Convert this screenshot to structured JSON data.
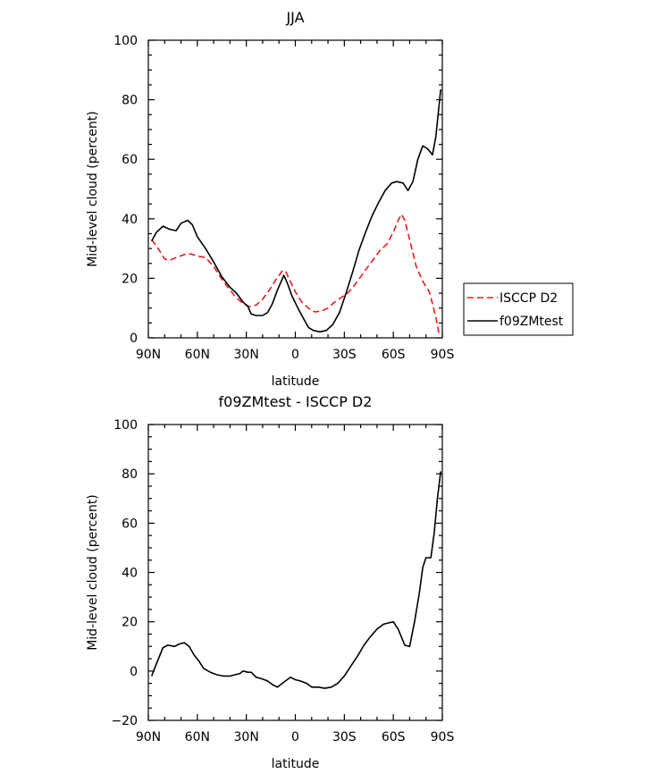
{
  "chart_data": [
    {
      "type": "line",
      "title": "JJA",
      "xlabel": "latitude",
      "ylabel": "Mid-level cloud (percent)",
      "xlim": [
        90,
        -90
      ],
      "ylim": [
        0,
        100
      ],
      "xticks": [
        90,
        60,
        30,
        0,
        -30,
        -60,
        -90
      ],
      "xtick_labels": [
        "90N",
        "60N",
        "30N",
        "0",
        "30S",
        "60S",
        "90S"
      ],
      "yticks": [
        0,
        20,
        40,
        60,
        80,
        100
      ],
      "legend": "outside-right",
      "series": [
        {
          "name": "ISCCP D2",
          "color": "#e8191c",
          "dash": "dashed",
          "points": [
            [
              88,
              33
            ],
            [
              84,
              30
            ],
            [
              80,
              26.5
            ],
            [
              77,
              26
            ],
            [
              73,
              27
            ],
            [
              68,
              28
            ],
            [
              64,
              28.2
            ],
            [
              60,
              27.5
            ],
            [
              55,
              27
            ],
            [
              50,
              24
            ],
            [
              46,
              20.5
            ],
            [
              42,
              17.5
            ],
            [
              37,
              14
            ],
            [
              32,
              11.5
            ],
            [
              28,
              10.5
            ],
            [
              24,
              11
            ],
            [
              20,
              13
            ],
            [
              16,
              16
            ],
            [
              12,
              19.5
            ],
            [
              8,
              22.5
            ],
            [
              6,
              22.5
            ],
            [
              4,
              20
            ],
            [
              0,
              15.5
            ],
            [
              -4,
              12
            ],
            [
              -8,
              10
            ],
            [
              -12,
              8.7
            ],
            [
              -16,
              9
            ],
            [
              -20,
              10
            ],
            [
              -24,
              12
            ],
            [
              -28,
              13.5
            ],
            [
              -32,
              15
            ],
            [
              -36,
              17.5
            ],
            [
              -40,
              20.5
            ],
            [
              -44,
              23.5
            ],
            [
              -48,
              26.5
            ],
            [
              -52,
              29.5
            ],
            [
              -56,
              31.5
            ],
            [
              -60,
              35.5
            ],
            [
              -63,
              39.5
            ],
            [
              -65,
              41.5
            ],
            [
              -67,
              39.5
            ],
            [
              -70,
              33
            ],
            [
              -74,
              24
            ],
            [
              -78,
              19
            ],
            [
              -82,
              15.5
            ],
            [
              -84,
              11.5
            ],
            [
              -86,
              7
            ],
            [
              -88,
              1.5
            ]
          ]
        },
        {
          "name": "f09ZMtest",
          "color": "#000000",
          "dash": "solid",
          "points": [
            [
              88,
              32.5
            ],
            [
              85,
              35.5
            ],
            [
              81,
              37.5
            ],
            [
              77,
              36.5
            ],
            [
              73,
              36
            ],
            [
              70,
              38.5
            ],
            [
              66,
              39.5
            ],
            [
              63,
              38
            ],
            [
              60,
              34
            ],
            [
              55,
              30
            ],
            [
              50,
              25.5
            ],
            [
              45,
              20.5
            ],
            [
              40,
              17
            ],
            [
              36,
              15
            ],
            [
              32,
              12
            ],
            [
              29,
              10.5
            ],
            [
              27,
              8
            ],
            [
              24,
              7.5
            ],
            [
              20,
              7.5
            ],
            [
              17,
              8.5
            ],
            [
              14,
              11.5
            ],
            [
              11,
              16
            ],
            [
              7,
              21
            ],
            [
              5,
              18.5
            ],
            [
              2,
              14
            ],
            [
              -2,
              9.5
            ],
            [
              -6,
              5.5
            ],
            [
              -8,
              3.5
            ],
            [
              -11,
              2.5
            ],
            [
              -15,
              2
            ],
            [
              -19,
              2.5
            ],
            [
              -23,
              4.5
            ],
            [
              -27,
              8.5
            ],
            [
              -31,
              15
            ],
            [
              -35,
              22
            ],
            [
              -39,
              29.5
            ],
            [
              -43,
              35.5
            ],
            [
              -47,
              41
            ],
            [
              -51,
              45.5
            ],
            [
              -55,
              49.5
            ],
            [
              -59,
              52
            ],
            [
              -62,
              52.5
            ],
            [
              -66,
              52
            ],
            [
              -69,
              49.5
            ],
            [
              -72,
              52.5
            ],
            [
              -75,
              60
            ],
            [
              -78,
              64.5
            ],
            [
              -81,
              63.5
            ],
            [
              -84,
              61.5
            ],
            [
              -86,
              67.5
            ],
            [
              -88,
              78
            ],
            [
              -89,
              83.5
            ]
          ]
        }
      ]
    },
    {
      "type": "line",
      "title": "f09ZMtest - ISCCP D2",
      "xlabel": "latitude",
      "ylabel": "Mid-level cloud (percent)",
      "xlim": [
        90,
        -90
      ],
      "ylim": [
        -20,
        100
      ],
      "xticks": [
        90,
        60,
        30,
        0,
        -30,
        -60,
        -90
      ],
      "xtick_labels": [
        "90N",
        "60N",
        "30N",
        "0",
        "30S",
        "60S",
        "90S"
      ],
      "yticks": [
        -20,
        0,
        20,
        40,
        60,
        80,
        100
      ],
      "series": [
        {
          "color": "#000000",
          "dash": "solid",
          "points": [
            [
              88,
              -2
            ],
            [
              85,
              3
            ],
            [
              81,
              9.5
            ],
            [
              78,
              10.5
            ],
            [
              74,
              10
            ],
            [
              71,
              11
            ],
            [
              68,
              11.5
            ],
            [
              65,
              10
            ],
            [
              62,
              6.5
            ],
            [
              59,
              4
            ],
            [
              56,
              1
            ],
            [
              52,
              -0.5
            ],
            [
              48,
              -1.5
            ],
            [
              44,
              -2
            ],
            [
              40,
              -2
            ],
            [
              37,
              -1.5
            ],
            [
              34,
              -1
            ],
            [
              32,
              0
            ],
            [
              29,
              -0.5
            ],
            [
              27,
              -0.5
            ],
            [
              24,
              -2.5
            ],
            [
              21,
              -3
            ],
            [
              17,
              -4
            ],
            [
              14,
              -5.5
            ],
            [
              11,
              -6.5
            ],
            [
              9,
              -5.5
            ],
            [
              6,
              -4
            ],
            [
              3,
              -2.5
            ],
            [
              0,
              -3.5
            ],
            [
              -3,
              -4
            ],
            [
              -7,
              -5
            ],
            [
              -10,
              -6.5
            ],
            [
              -14,
              -6.5
            ],
            [
              -18,
              -7
            ],
            [
              -22,
              -6.5
            ],
            [
              -26,
              -5
            ],
            [
              -30,
              -2
            ],
            [
              -34,
              2
            ],
            [
              -38,
              6
            ],
            [
              -42,
              10.5
            ],
            [
              -46,
              14
            ],
            [
              -50,
              17
            ],
            [
              -54,
              19
            ],
            [
              -57,
              19.5
            ],
            [
              -60,
              20
            ],
            [
              -63,
              17
            ],
            [
              -67,
              10.5
            ],
            [
              -70,
              10
            ],
            [
              -73,
              20
            ],
            [
              -76,
              32
            ],
            [
              -78,
              42
            ],
            [
              -80,
              46
            ],
            [
              -83,
              46
            ],
            [
              -85,
              56
            ],
            [
              -87,
              70
            ],
            [
              -89,
              81
            ]
          ]
        }
      ]
    }
  ]
}
